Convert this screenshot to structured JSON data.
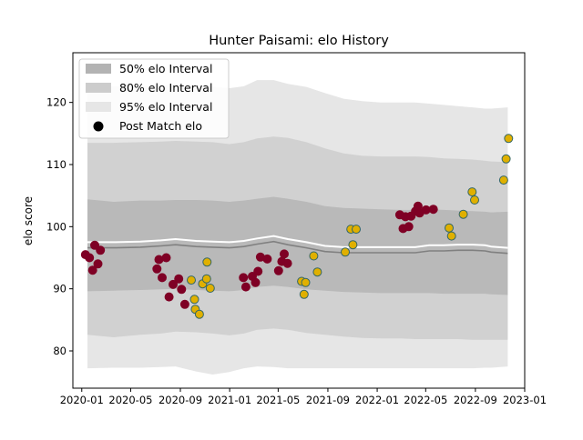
{
  "chart_data": {
    "type": "scatter",
    "title": "Hunter Paisami: elo History",
    "xlabel": "",
    "ylabel": "elo score",
    "xlim": [
      "2019-12-10",
      "2023-01-01"
    ],
    "ylim": [
      74,
      128
    ],
    "x_ticks": [
      "2020-01",
      "2020-05",
      "2020-09",
      "2021-01",
      "2021-05",
      "2021-09",
      "2022-01",
      "2022-05",
      "2022-09",
      "2023-01"
    ],
    "y_ticks": [
      80,
      90,
      100,
      110,
      120
    ],
    "grid": false,
    "legend_position": "top-left",
    "legend": [
      {
        "label": "50% elo Interval",
        "color": "#b3b3b3"
      },
      {
        "label": "80% elo Interval",
        "color": "#cccccc"
      },
      {
        "label": "95% elo Interval",
        "color": "#e6e6e6"
      },
      {
        "label": "Post Match elo",
        "color": "#000000"
      }
    ],
    "colors": {
      "win": "#7f0025",
      "loss": "#e0b000",
      "marker_edge": "#336666",
      "mean_line": "#808080",
      "highlight_line": "#ffffff"
    },
    "bands": {
      "x": [
        "2020-01-15",
        "2020-03-20",
        "2020-05-25",
        "2020-07-15",
        "2020-08-20",
        "2020-10-10",
        "2020-11-20",
        "2020-12-31",
        "2021-02-05",
        "2021-03-10",
        "2021-04-20",
        "2021-05-25",
        "2021-07-10",
        "2021-08-25",
        "2021-10-10",
        "2021-11-25",
        "2022-01-10",
        "2022-03-01",
        "2022-04-05",
        "2022-05-10",
        "2022-06-15",
        "2022-07-20",
        "2022-08-25",
        "2022-09-25",
        "2022-10-10",
        "2022-11-20"
      ],
      "p95_upper": [
        122.5,
        122.6,
        122.6,
        122.7,
        122.8,
        122.6,
        122.5,
        122.3,
        122.6,
        123.6,
        123.6,
        123.0,
        122.5,
        121.5,
        120.6,
        120.2,
        120.0,
        120.0,
        120.0,
        119.8,
        119.6,
        119.4,
        119.2,
        119.0,
        119.0,
        119.2
      ],
      "p95_lower": [
        77.2,
        77.3,
        77.3,
        77.4,
        77.5,
        76.7,
        76.2,
        76.6,
        77.2,
        77.5,
        77.4,
        77.2,
        77.2,
        77.2,
        77.2,
        77.2,
        77.2,
        77.2,
        77.2,
        77.2,
        77.2,
        77.2,
        77.2,
        77.3,
        77.3,
        77.5
      ],
      "p80_upper": [
        113.5,
        113.5,
        113.6,
        113.7,
        113.8,
        113.7,
        113.6,
        113.3,
        113.6,
        114.2,
        114.5,
        114.3,
        113.6,
        112.6,
        111.8,
        111.4,
        111.3,
        111.3,
        111.3,
        111.2,
        111.0,
        110.9,
        110.8,
        110.6,
        110.5,
        110.4
      ],
      "p80_lower": [
        82.6,
        82.2,
        82.6,
        82.8,
        83.1,
        83.0,
        82.8,
        82.5,
        82.8,
        83.4,
        83.6,
        83.4,
        82.9,
        82.6,
        82.3,
        82.1,
        82.0,
        82.0,
        81.9,
        81.9,
        81.9,
        81.9,
        81.8,
        81.8,
        81.8,
        81.8
      ],
      "p50_upper": [
        104.4,
        104.0,
        104.2,
        104.2,
        104.3,
        104.3,
        104.2,
        104.0,
        104.2,
        104.5,
        104.8,
        104.5,
        104.0,
        103.3,
        103.0,
        102.9,
        102.8,
        102.7,
        102.7,
        102.8,
        102.7,
        102.6,
        102.5,
        102.4,
        102.3,
        102.4
      ],
      "p50_lower": [
        89.6,
        89.7,
        89.8,
        89.9,
        90.0,
        89.8,
        89.7,
        89.6,
        89.8,
        90.3,
        90.5,
        90.3,
        89.9,
        89.7,
        89.5,
        89.4,
        89.3,
        89.3,
        89.3,
        89.3,
        89.2,
        89.2,
        89.2,
        89.2,
        89.1,
        89.0
      ],
      "mean": [
        96.6,
        96.6,
        96.7,
        96.9,
        97.1,
        96.8,
        96.7,
        96.6,
        96.8,
        97.2,
        97.6,
        97.1,
        96.6,
        96.0,
        95.8,
        95.8,
        95.8,
        95.8,
        95.8,
        96.1,
        96.1,
        96.2,
        96.2,
        96.1,
        95.9,
        95.7
      ]
    },
    "points": [
      {
        "x": "2020-01-10",
        "y": 95.5,
        "result": "win"
      },
      {
        "x": "2020-01-20",
        "y": 95.0,
        "result": "win"
      },
      {
        "x": "2020-01-28",
        "y": 93.0,
        "result": "win"
      },
      {
        "x": "2020-02-02",
        "y": 97.0,
        "result": "win"
      },
      {
        "x": "2020-02-10",
        "y": 94.0,
        "result": "win"
      },
      {
        "x": "2020-02-16",
        "y": 96.2,
        "result": "win"
      },
      {
        "x": "2020-07-05",
        "y": 93.2,
        "result": "win"
      },
      {
        "x": "2020-07-10",
        "y": 94.7,
        "result": "win"
      },
      {
        "x": "2020-07-18",
        "y": 91.8,
        "result": "win"
      },
      {
        "x": "2020-07-28",
        "y": 95.0,
        "result": "win"
      },
      {
        "x": "2020-08-04",
        "y": 88.7,
        "result": "win"
      },
      {
        "x": "2020-08-14",
        "y": 90.7,
        "result": "win"
      },
      {
        "x": "2020-08-28",
        "y": 91.6,
        "result": "win"
      },
      {
        "x": "2020-09-04",
        "y": 89.9,
        "result": "win"
      },
      {
        "x": "2020-09-12",
        "y": 87.5,
        "result": "win"
      },
      {
        "x": "2020-09-28",
        "y": 91.4,
        "result": "loss"
      },
      {
        "x": "2020-10-06",
        "y": 88.3,
        "result": "loss"
      },
      {
        "x": "2020-10-08",
        "y": 86.7,
        "result": "loss"
      },
      {
        "x": "2020-10-18",
        "y": 85.9,
        "result": "loss"
      },
      {
        "x": "2020-10-26",
        "y": 90.8,
        "result": "loss"
      },
      {
        "x": "2020-11-05",
        "y": 91.6,
        "result": "loss"
      },
      {
        "x": "2020-11-06",
        "y": 94.3,
        "result": "loss"
      },
      {
        "x": "2020-11-14",
        "y": 90.1,
        "result": "loss"
      },
      {
        "x": "2021-02-04",
        "y": 91.8,
        "result": "win"
      },
      {
        "x": "2021-02-10",
        "y": 90.3,
        "result": "win"
      },
      {
        "x": "2021-02-26",
        "y": 92.0,
        "result": "win"
      },
      {
        "x": "2021-03-06",
        "y": 91.0,
        "result": "win"
      },
      {
        "x": "2021-03-12",
        "y": 92.8,
        "result": "win"
      },
      {
        "x": "2021-03-18",
        "y": 95.1,
        "result": "win"
      },
      {
        "x": "2021-04-04",
        "y": 94.8,
        "result": "win"
      },
      {
        "x": "2021-05-02",
        "y": 92.9,
        "result": "win"
      },
      {
        "x": "2021-05-10",
        "y": 94.4,
        "result": "win"
      },
      {
        "x": "2021-05-16",
        "y": 95.6,
        "result": "win"
      },
      {
        "x": "2021-05-24",
        "y": 94.1,
        "result": "win"
      },
      {
        "x": "2021-06-28",
        "y": 91.2,
        "result": "loss"
      },
      {
        "x": "2021-07-04",
        "y": 89.1,
        "result": "loss"
      },
      {
        "x": "2021-07-08",
        "y": 91.0,
        "result": "loss"
      },
      {
        "x": "2021-07-28",
        "y": 95.3,
        "result": "loss"
      },
      {
        "x": "2021-08-06",
        "y": 92.7,
        "result": "loss"
      },
      {
        "x": "2021-10-14",
        "y": 95.9,
        "result": "loss"
      },
      {
        "x": "2021-10-28",
        "y": 99.6,
        "result": "loss"
      },
      {
        "x": "2021-11-02",
        "y": 97.1,
        "result": "loss"
      },
      {
        "x": "2021-11-10",
        "y": 99.6,
        "result": "loss"
      },
      {
        "x": "2022-02-26",
        "y": 101.9,
        "result": "win"
      },
      {
        "x": "2022-03-06",
        "y": 99.7,
        "result": "win"
      },
      {
        "x": "2022-03-12",
        "y": 101.6,
        "result": "win"
      },
      {
        "x": "2022-03-20",
        "y": 100.0,
        "result": "win"
      },
      {
        "x": "2022-03-26",
        "y": 101.7,
        "result": "win"
      },
      {
        "x": "2022-04-06",
        "y": 102.5,
        "result": "win"
      },
      {
        "x": "2022-04-12",
        "y": 103.3,
        "result": "win"
      },
      {
        "x": "2022-04-16",
        "y": 102.2,
        "result": "win"
      },
      {
        "x": "2022-05-02",
        "y": 102.7,
        "result": "win"
      },
      {
        "x": "2022-05-20",
        "y": 102.8,
        "result": "win"
      },
      {
        "x": "2022-06-28",
        "y": 99.8,
        "result": "loss"
      },
      {
        "x": "2022-07-04",
        "y": 98.5,
        "result": "loss"
      },
      {
        "x": "2022-08-02",
        "y": 102.0,
        "result": "loss"
      },
      {
        "x": "2022-08-24",
        "y": 105.6,
        "result": "loss"
      },
      {
        "x": "2022-08-30",
        "y": 104.3,
        "result": "loss"
      },
      {
        "x": "2022-11-10",
        "y": 107.5,
        "result": "loss"
      },
      {
        "x": "2022-11-16",
        "y": 110.9,
        "result": "loss"
      },
      {
        "x": "2022-11-22",
        "y": 114.2,
        "result": "loss"
      }
    ]
  }
}
